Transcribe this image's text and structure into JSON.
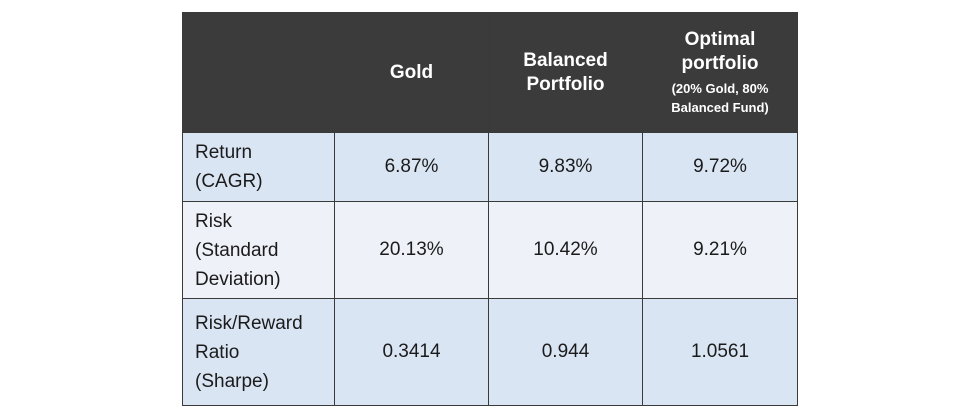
{
  "table": {
    "headers": [
      {
        "main": ""
      },
      {
        "main": "Gold"
      },
      {
        "main": "Balanced Portfolio"
      },
      {
        "main": "Optimal portfolio",
        "sub": "(20% Gold, 80% Balanced Fund)"
      }
    ],
    "rows": [
      {
        "label": [
          "Return",
          "(CAGR)"
        ],
        "values": [
          "6.87%",
          "9.83%",
          "9.72%"
        ]
      },
      {
        "label": [
          "Risk",
          "(Standard",
          "Deviation)"
        ],
        "values": [
          "20.13%",
          "10.42%",
          "9.21%"
        ]
      },
      {
        "label": [
          "Risk/Reward",
          "Ratio",
          "(Sharpe)"
        ],
        "values": [
          "0.3414",
          "0.944",
          "1.0561"
        ]
      }
    ]
  },
  "colors": {
    "header_bg": "#3b3b3b",
    "header_text": "#ffffff",
    "row_blue": "#dae5f4",
    "row_light": "#eef1f8",
    "border": "#3a3a3a"
  }
}
